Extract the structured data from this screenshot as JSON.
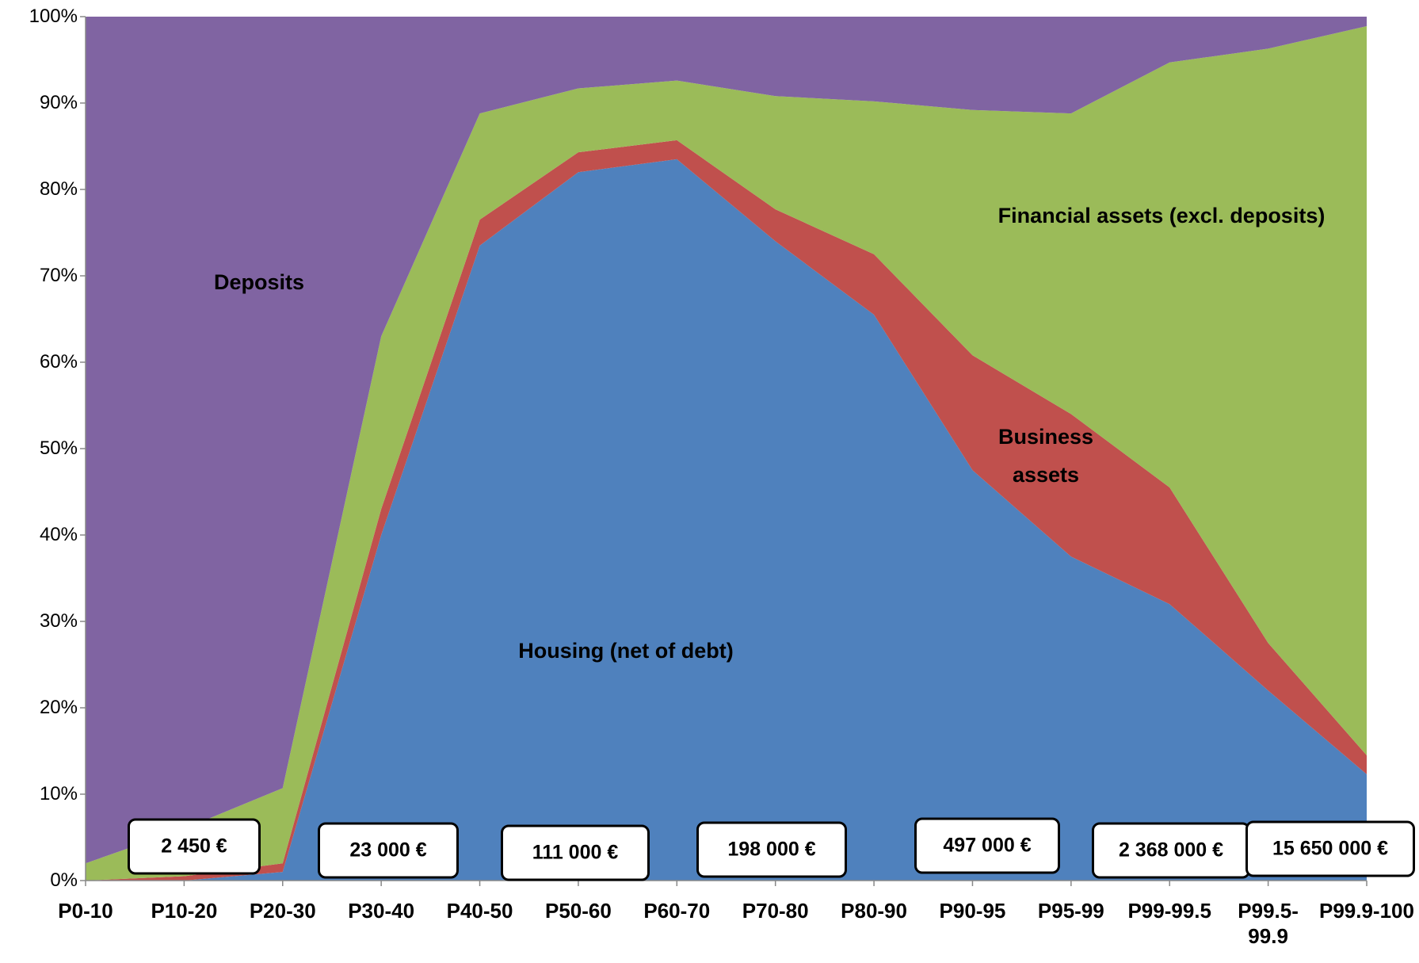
{
  "chart_data": {
    "type": "stacked_area",
    "categories": [
      "P0-10",
      "P10-20",
      "P20-30",
      "P30-40",
      "P40-50",
      "P50-60",
      "P60-70",
      "P70-80",
      "P80-90",
      "P90-95",
      "P95-99",
      "P99-99.5",
      "P99.5-99.9",
      "P99.9-100"
    ],
    "series": [
      {
        "name": "Housing (net of debt)",
        "color": "#4f81bd",
        "values": [
          0,
          0,
          1,
          40,
          73.5,
          82,
          83.5,
          74,
          65.5,
          47.5,
          37.5,
          32,
          22,
          12.3
        ]
      },
      {
        "name": "Business assets",
        "color": "#c0504d",
        "values": [
          0,
          0.5,
          1,
          3,
          3,
          2.3,
          2.2,
          3.7,
          7,
          13.3,
          16.5,
          13.5,
          5.5,
          2.2
        ]
      },
      {
        "name": "Financial assets  (excl. deposits)",
        "color": "#9bbb59",
        "values": [
          2,
          5.5,
          8.7,
          20,
          12.3,
          7.4,
          6.9,
          13.1,
          17.7,
          28.4,
          34.8,
          49.2,
          68.8,
          84.4
        ]
      },
      {
        "name": "Deposits",
        "color": "#8064a2",
        "values": [
          98,
          94,
          89.3,
          37,
          11.2,
          8.3,
          7.4,
          9.2,
          9.8,
          10.8,
          11.2,
          5.3,
          3.7,
          1.1
        ]
      }
    ],
    "ylim": [
      0,
      100
    ],
    "yticks": [
      {
        "value": 0,
        "label": "0%"
      },
      {
        "value": 10,
        "label": "10%"
      },
      {
        "value": 20,
        "label": "20%"
      },
      {
        "value": 30,
        "label": "30%"
      },
      {
        "value": 40,
        "label": "40%"
      },
      {
        "value": 50,
        "label": "50%"
      },
      {
        "value": 60,
        "label": "60%"
      },
      {
        "value": 70,
        "label": "70%"
      },
      {
        "value": 80,
        "label": "80%"
      },
      {
        "value": 90,
        "label": "90%"
      },
      {
        "value": 100,
        "label": "100%"
      }
    ],
    "annotations": [
      "2 450 €",
      "23 000 €",
      "111 000 €",
      "198 000 €",
      "497 000 €",
      "2 368 000 €",
      "15 650 000 €"
    ]
  }
}
